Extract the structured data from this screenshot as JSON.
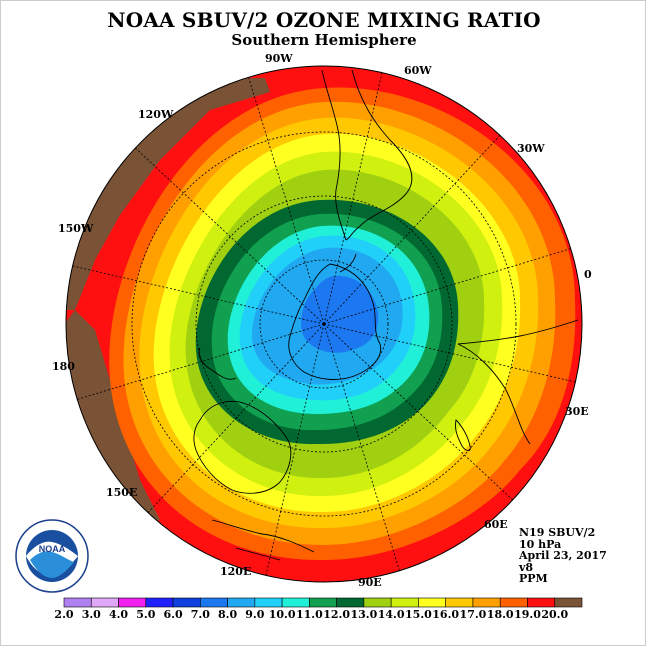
{
  "title": "NOAA SBUV/2 OZONE MIXING RATIO",
  "subtitle": "Southern Hemisphere",
  "longitude_labels": [
    {
      "id": "lon-90w",
      "text": "90W"
    },
    {
      "id": "lon-60w",
      "text": "60W"
    },
    {
      "id": "lon-30w",
      "text": "30W"
    },
    {
      "id": "lon-0",
      "text": "0"
    },
    {
      "id": "lon-30e",
      "text": "30E"
    },
    {
      "id": "lon-60e",
      "text": "60E"
    },
    {
      "id": "lon-90e",
      "text": "90E"
    },
    {
      "id": "lon-120e",
      "text": "120E"
    },
    {
      "id": "lon-150e",
      "text": "150E"
    },
    {
      "id": "lon-180",
      "text": "180"
    },
    {
      "id": "lon-150w",
      "text": "150W"
    },
    {
      "id": "lon-120w",
      "text": "120W"
    }
  ],
  "info": {
    "satellite": "N19 SBUV/2",
    "pressure": "10 hPa",
    "date": "April 23, 2017",
    "version": "v8",
    "units": "PPM"
  },
  "logo_text": "NOAA",
  "colorbar": {
    "labels": [
      "2.0",
      "3.0",
      "4.0",
      "5.0",
      "6.0",
      "7.0",
      "8.0",
      "9.0",
      "10.0",
      "11.0",
      "12.0",
      "13.0",
      "14.0",
      "15.0",
      "16.0",
      "17.0",
      "18.0",
      "19.0",
      "20.0"
    ],
    "colors": [
      "#b080f0",
      "#e0a8f8",
      "#f020f0",
      "#2020ff",
      "#1040e0",
      "#1c78f0",
      "#20a8f0",
      "#20d0f8",
      "#20f0d8",
      "#10a050",
      "#006830",
      "#a0d010",
      "#d0f010",
      "#ffff20",
      "#ffc800",
      "#ffa000",
      "#ff6000",
      "#ff1010",
      "#7a5236"
    ]
  },
  "map_colors": {
    "r20": "#7a5236",
    "r19": "#ff1010",
    "r18": "#ff6000",
    "r17": "#ffa000",
    "r16": "#ffc800",
    "r15": "#ffff20",
    "r14": "#d0f010",
    "r13": "#a0d010",
    "r12": "#006830",
    "r11": "#10a050",
    "r10": "#20f0d8",
    "r9": "#20d0f8",
    "r8": "#20a8f0",
    "r7": "#1c78f0"
  }
}
